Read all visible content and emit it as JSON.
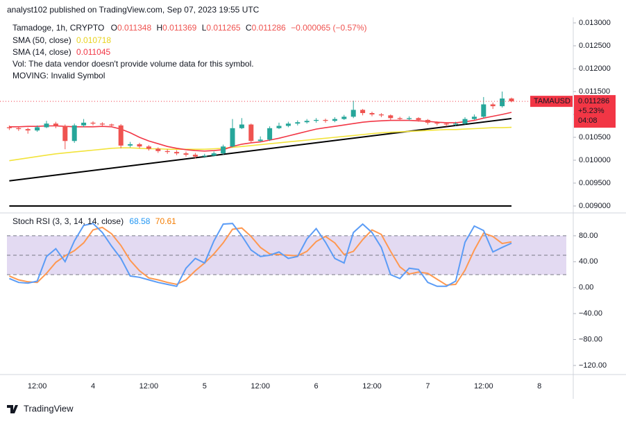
{
  "header": {
    "published": "analyst102 published on TradingView.com, Sep 07, 2023 19:55 UTC"
  },
  "footer": {
    "brand": "TradingView"
  },
  "chart_data": [
    {
      "type": "candlestick",
      "title": "Tamadoge, 1h, CRYPTO",
      "symbol": "TAMAUSD",
      "legend_labels": {
        "open": "O",
        "high": "H",
        "low": "L",
        "close": "C"
      },
      "change": "−0.000065 (−0.57%)",
      "change_pct": "+5.23%",
      "countdown": "04:08",
      "notes": [
        "Vol: The data vendor doesn't provide volume data for this symbol.",
        "MOVING: Invalid Symbol"
      ],
      "up_color": "#26a69a",
      "down_color": "#ef5350",
      "categories": [
        null,
        null,
        null,
        "12:00",
        null,
        null,
        null,
        null,
        null,
        "4",
        null,
        null,
        null,
        null,
        null,
        "12:00",
        null,
        null,
        null,
        null,
        null,
        "5",
        null,
        null,
        null,
        null,
        null,
        "12:00",
        null,
        null,
        null,
        null,
        null,
        "6",
        null,
        null,
        null,
        null,
        null,
        "12:00",
        null,
        null,
        null,
        null,
        null,
        "7",
        null,
        null,
        null,
        null,
        null,
        "12:00",
        null,
        null,
        null,
        null,
        null,
        "8"
      ],
      "open": [
        0.01072,
        0.0107,
        0.01068,
        0.01065,
        0.01072,
        0.0108,
        0.01075,
        0.01042,
        0.01076,
        0.01082,
        0.0108,
        0.01078,
        0.01076,
        0.01032,
        0.01035,
        0.0103,
        0.01025,
        0.0102,
        0.01018,
        0.01015,
        0.01012,
        0.01008,
        0.0101,
        0.01015,
        0.0103,
        0.0107,
        0.01078,
        0.01042,
        0.01045,
        0.0107,
        0.01075,
        0.0108,
        0.01083,
        0.01086,
        0.01088,
        0.01086,
        0.0109,
        0.01095,
        0.0111,
        0.01103,
        0.011,
        0.01098,
        0.01092,
        0.0109,
        0.01092,
        0.01088,
        0.01082,
        0.0108,
        0.01078,
        0.0108,
        0.0109,
        0.01095,
        0.01122,
        0.01118,
        0.011348,
        null,
        null,
        null
      ],
      "high": [
        0.01076,
        0.01073,
        0.01071,
        0.01076,
        0.01086,
        0.01084,
        0.01078,
        0.0108,
        0.0109,
        0.01085,
        0.01083,
        0.0108,
        0.01079,
        0.0104,
        0.01038,
        0.01033,
        0.01028,
        0.01024,
        0.01022,
        0.01019,
        0.01016,
        0.01014,
        0.01019,
        0.01034,
        0.0109,
        0.01092,
        0.0108,
        0.01052,
        0.01074,
        0.01082,
        0.01084,
        0.01087,
        0.0109,
        0.01092,
        0.01091,
        0.01094,
        0.01099,
        0.0113,
        0.01112,
        0.01106,
        0.01103,
        0.011,
        0.01095,
        0.01096,
        0.01094,
        0.0109,
        0.01085,
        0.01083,
        0.01084,
        0.01094,
        0.011,
        0.01138,
        0.01126,
        0.0115,
        0.011369,
        null,
        null,
        null
      ],
      "low": [
        0.01066,
        0.01064,
        0.01058,
        0.01062,
        0.0107,
        0.0107,
        0.01024,
        0.01038,
        0.01072,
        0.01076,
        0.01074,
        0.01072,
        0.01026,
        0.01028,
        0.01026,
        0.01021,
        0.01016,
        0.01014,
        0.01011,
        0.01008,
        0.01004,
        0.01005,
        0.01008,
        0.01012,
        0.01028,
        0.01068,
        0.01038,
        0.0104,
        0.01042,
        0.01068,
        0.01072,
        0.01076,
        0.0108,
        0.01082,
        0.01082,
        0.01083,
        0.01088,
        0.01092,
        0.01098,
        0.01096,
        0.01094,
        0.01088,
        0.01086,
        0.01087,
        0.01084,
        0.01078,
        0.01076,
        0.01074,
        0.01075,
        0.01078,
        0.01088,
        0.01092,
        0.01112,
        0.01115,
        0.011265,
        null,
        null,
        null
      ],
      "close": [
        0.0107,
        0.01068,
        0.01065,
        0.01072,
        0.0108,
        0.01075,
        0.01042,
        0.01076,
        0.01082,
        0.0108,
        0.01078,
        0.01076,
        0.01032,
        0.01035,
        0.0103,
        0.01025,
        0.0102,
        0.01018,
        0.01015,
        0.01012,
        0.01008,
        0.0101,
        0.01015,
        0.0103,
        0.0107,
        0.01078,
        0.01042,
        0.01045,
        0.0107,
        0.01075,
        0.0108,
        0.01083,
        0.01086,
        0.01088,
        0.01086,
        0.0109,
        0.01095,
        0.0111,
        0.01103,
        0.011,
        0.01098,
        0.01092,
        0.0109,
        0.01092,
        0.01088,
        0.01082,
        0.0108,
        0.01078,
        0.0108,
        0.0109,
        0.01095,
        0.01122,
        0.01118,
        0.011348,
        0.011286,
        null,
        null,
        null
      ],
      "series": [
        {
          "name": "SMA (50, close)",
          "color": "#f2e33a",
          "values": [
            0.00999,
            0.01002,
            0.01005,
            0.01008,
            0.01011,
            0.01014,
            0.01016,
            0.01018,
            0.0102,
            0.01022,
            0.01024,
            0.01026,
            0.01027,
            0.01027,
            0.01026,
            0.01025,
            0.01025,
            0.01024,
            0.01024,
            0.01024,
            0.01024,
            0.01024,
            0.01025,
            0.01026,
            0.01028,
            0.0103,
            0.01032,
            0.01034,
            0.01036,
            0.01038,
            0.0104,
            0.01042,
            0.01044,
            0.01046,
            0.01048,
            0.0105,
            0.01052,
            0.01054,
            0.01056,
            0.01058,
            0.0106,
            0.01061,
            0.01062,
            0.01063,
            0.01064,
            0.01065,
            0.01066,
            0.01067,
            0.01067,
            0.01068,
            0.01069,
            0.0107,
            0.01071,
            0.01071,
            0.010718,
            null,
            null,
            null
          ]
        },
        {
          "name": "SMA (14, close)",
          "color": "#f23645",
          "values": [
            0.01073,
            0.01073,
            0.01074,
            0.01074,
            0.01075,
            0.01075,
            0.01074,
            0.01073,
            0.01073,
            0.01073,
            0.01074,
            0.01073,
            0.01068,
            0.0106,
            0.0105,
            0.01042,
            0.01036,
            0.0103,
            0.01026,
            0.01023,
            0.01021,
            0.0102,
            0.01021,
            0.01023,
            0.0103,
            0.01035,
            0.01038,
            0.0104,
            0.01044,
            0.01048,
            0.01053,
            0.01058,
            0.01063,
            0.01068,
            0.01071,
            0.01074,
            0.01077,
            0.0108,
            0.01083,
            0.01085,
            0.01086,
            0.01087,
            0.01087,
            0.01087,
            0.01086,
            0.01085,
            0.01083,
            0.01082,
            0.01082,
            0.01084,
            0.01087,
            0.01092,
            0.01096,
            0.011,
            0.011045,
            null,
            null,
            null
          ]
        }
      ],
      "trendlines": [
        {
          "color": "#000000",
          "values": [
            0.00955,
            0.01091
          ]
        },
        {
          "color": "#000000",
          "values": [
            0.009,
            0.009
          ]
        }
      ],
      "ylim": [
        0.008879,
        0.013121
      ],
      "yticks": [
        {
          "value": 0.013,
          "label": "0.013000"
        },
        {
          "value": 0.0125,
          "label": "0.012500"
        },
        {
          "value": 0.012,
          "label": "0.012000"
        },
        {
          "value": 0.0115,
          "label": "0.011500"
        },
        {
          "value": 0.011,
          "label": "0.011000"
        },
        {
          "value": 0.0105,
          "label": "0.010500"
        },
        {
          "value": 0.01,
          "label": "0.010000"
        },
        {
          "value": 0.0095,
          "label": "0.009500"
        },
        {
          "value": 0.009,
          "label": "0.009000"
        }
      ]
    },
    {
      "type": "line",
      "title": "Stoch RSI (3, 3, 14, 14, close)",
      "series": [
        {
          "color": "#5b9cf6",
          "values": [
            14,
            8,
            7,
            10,
            48,
            60,
            40,
            72,
            96,
            99,
            85,
            64,
            45,
            18,
            16,
            12,
            8,
            5,
            2,
            30,
            45,
            38,
            72,
            98,
            99,
            80,
            58,
            48,
            50,
            55,
            45,
            48,
            75,
            91,
            70,
            45,
            38,
            85,
            98,
            85,
            62,
            20,
            14,
            30,
            28,
            8,
            2,
            2,
            10,
            70,
            95,
            88,
            55,
            62,
            68.58,
            null,
            null,
            null
          ]
        },
        {
          "color": "#ff9850",
          "values": [
            18,
            12,
            9,
            8,
            22,
            39,
            49,
            57,
            69,
            89,
            93,
            83,
            65,
            42,
            26,
            15,
            12,
            8,
            5,
            12,
            26,
            38,
            52,
            69,
            90,
            92,
            79,
            62,
            52,
            51,
            50,
            49,
            56,
            71,
            79,
            69,
            51,
            56,
            74,
            89,
            82,
            56,
            32,
            21,
            24,
            22,
            13,
            4,
            5,
            27,
            58,
            84,
            79,
            68,
            70.61,
            null,
            null,
            null
          ]
        }
      ],
      "bands": [
        20,
        80
      ],
      "midline": 50,
      "band_color": "#7e57c2",
      "ylim": [
        -134,
        112
      ],
      "yticks": [
        {
          "value": 80,
          "label": "80.00"
        },
        {
          "value": 40,
          "label": "40.00"
        },
        {
          "value": 0,
          "label": "0.00"
        },
        {
          "value": -40,
          "label": "−40.00"
        },
        {
          "value": -80,
          "label": "−80.00"
        },
        {
          "value": -120,
          "label": "−120.00"
        }
      ]
    }
  ]
}
